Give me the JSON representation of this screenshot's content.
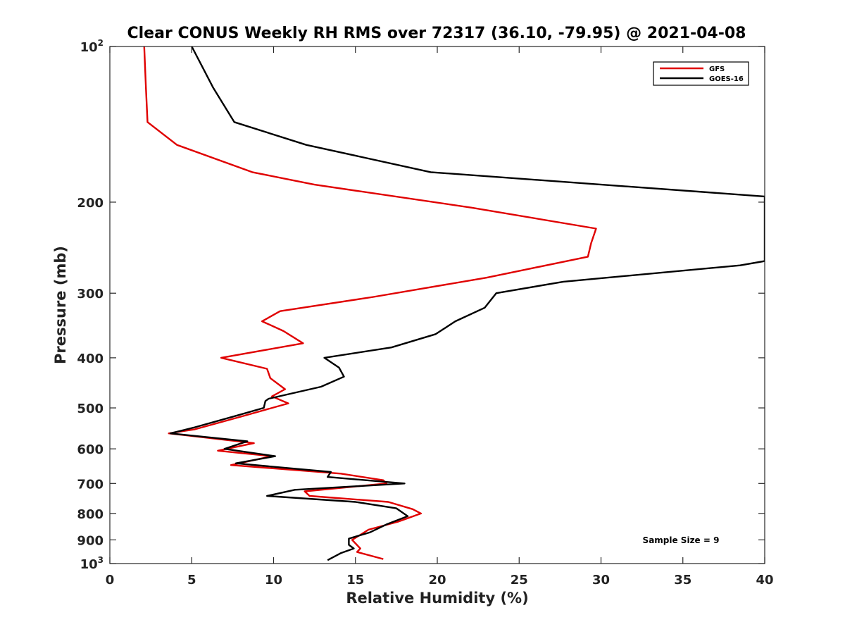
{
  "chart_data": {
    "type": "line",
    "title": "Clear CONUS Weekly RH RMS over 72317 (36.10, -79.95) @ 2021-04-08",
    "xlabel": "Relative Humidity (%)",
    "ylabel": "Pressure (mb)",
    "xlim": [
      0,
      40
    ],
    "ylim": [
      100,
      1000
    ],
    "y_scale": "log",
    "y_reversed": true,
    "grid": false,
    "legend_position": "top-right",
    "x_ticks": [
      "0",
      "5",
      "10",
      "15",
      "20",
      "25",
      "30",
      "35",
      "40"
    ],
    "y_ticks": [
      {
        "value": 100,
        "base": "10",
        "exp": "2"
      },
      {
        "value": 200,
        "label": "200"
      },
      {
        "value": 300,
        "label": "300"
      },
      {
        "value": 400,
        "label": "400"
      },
      {
        "value": 500,
        "label": "500"
      },
      {
        "value": 600,
        "label": "600"
      },
      {
        "value": 700,
        "label": "700"
      },
      {
        "value": 800,
        "label": "800"
      },
      {
        "value": 900,
        "label": "900"
      },
      {
        "value": 1000,
        "base": "10",
        "exp": "3"
      }
    ],
    "annotation": "Sample Size = 9",
    "series": [
      {
        "name": "GFS",
        "color": "#e00000",
        "points": [
          [
            2.1,
            100
          ],
          [
            2.2,
            120
          ],
          [
            2.3,
            140
          ],
          [
            4.1,
            155
          ],
          [
            8.7,
            175
          ],
          [
            12.5,
            185
          ],
          [
            22.1,
            205
          ],
          [
            29.7,
            225
          ],
          [
            29.4,
            240
          ],
          [
            29.2,
            255
          ],
          [
            23.0,
            280
          ],
          [
            16.1,
            305
          ],
          [
            10.4,
            325
          ],
          [
            9.3,
            340
          ],
          [
            10.6,
            355
          ],
          [
            11.8,
            375
          ],
          [
            6.8,
            400
          ],
          [
            9.6,
            420
          ],
          [
            9.8,
            438
          ],
          [
            10.7,
            460
          ],
          [
            9.9,
            475
          ],
          [
            10.9,
            490
          ],
          [
            8.0,
            520
          ],
          [
            5.2,
            550
          ],
          [
            3.6,
            560
          ],
          [
            8.8,
            585
          ],
          [
            6.6,
            605
          ],
          [
            9.9,
            620
          ],
          [
            7.4,
            645
          ],
          [
            14.1,
            670
          ],
          [
            16.7,
            690
          ],
          [
            16.9,
            700
          ],
          [
            11.9,
            725
          ],
          [
            12.2,
            740
          ],
          [
            17.0,
            760
          ],
          [
            18.5,
            785
          ],
          [
            19.0,
            800
          ],
          [
            17.6,
            830
          ],
          [
            15.8,
            860
          ],
          [
            14.8,
            900
          ],
          [
            15.3,
            935
          ],
          [
            15.1,
            950
          ],
          [
            16.7,
            980
          ]
        ]
      },
      {
        "name": "GOES-16",
        "color": "#000000",
        "points": [
          [
            5.0,
            100
          ],
          [
            6.3,
            120
          ],
          [
            7.6,
            140
          ],
          [
            12.0,
            155
          ],
          [
            19.6,
            175
          ],
          [
            40.0,
            195
          ],
          [
            40.0,
            260
          ],
          [
            38.5,
            265
          ],
          [
            27.7,
            285
          ],
          [
            23.6,
            300
          ],
          [
            22.9,
            320
          ],
          [
            21.1,
            340
          ],
          [
            19.9,
            360
          ],
          [
            17.2,
            382
          ],
          [
            13.1,
            400
          ],
          [
            14.0,
            418
          ],
          [
            14.3,
            435
          ],
          [
            12.9,
            455
          ],
          [
            9.7,
            480
          ],
          [
            9.5,
            485
          ],
          [
            9.4,
            500
          ],
          [
            7.7,
            518
          ],
          [
            5.2,
            545
          ],
          [
            3.7,
            560
          ],
          [
            8.4,
            580
          ],
          [
            7.0,
            600
          ],
          [
            10.1,
            620
          ],
          [
            7.7,
            640
          ],
          [
            13.5,
            665
          ],
          [
            13.3,
            680
          ],
          [
            18.0,
            700
          ],
          [
            11.3,
            720
          ],
          [
            9.6,
            740
          ],
          [
            15.0,
            760
          ],
          [
            17.5,
            782
          ],
          [
            18.2,
            810
          ],
          [
            16.9,
            840
          ],
          [
            15.9,
            870
          ],
          [
            14.6,
            895
          ],
          [
            14.6,
            920
          ],
          [
            14.9,
            935
          ],
          [
            14.1,
            955
          ],
          [
            13.3,
            985
          ]
        ]
      }
    ]
  }
}
